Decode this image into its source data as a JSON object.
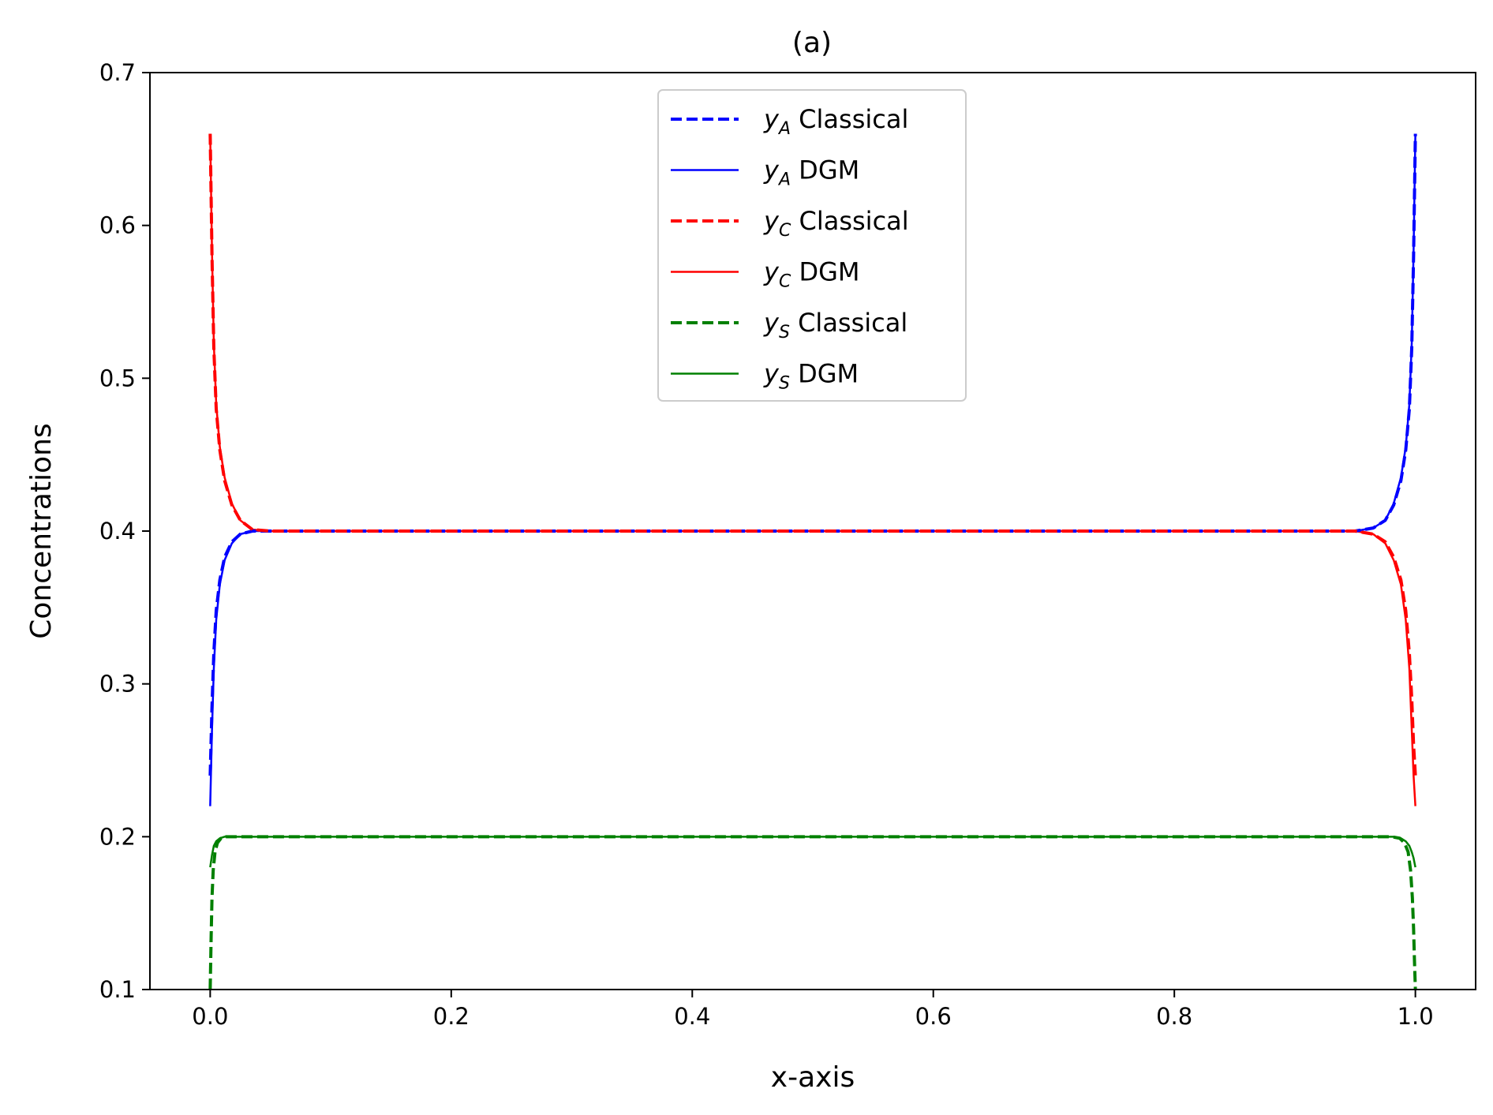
{
  "chart_data": {
    "type": "line",
    "title": "(a)",
    "xlabel": "x-axis",
    "ylabel": "Concentrations",
    "xlim": [
      -0.05,
      1.05
    ],
    "ylim": [
      0.1,
      0.7
    ],
    "xticks": [
      "0.0",
      "0.2",
      "0.4",
      "0.6",
      "0.8",
      "1.0"
    ],
    "yticks": [
      "0.1",
      "0.2",
      "0.3",
      "0.4",
      "0.5",
      "0.6",
      "0.7"
    ],
    "grid": false,
    "legend_position": "upper center",
    "series": [
      {
        "name": "y_A Classical",
        "var": "y",
        "sub": "A",
        "label": "Classical",
        "color": "#0000ff",
        "style": "dashed",
        "x": [
          0.0,
          0.0015,
          0.003,
          0.005,
          0.008,
          0.012,
          0.018,
          0.025,
          0.035,
          0.05,
          0.2,
          0.4,
          0.6,
          0.8,
          0.95,
          0.965,
          0.975,
          0.982,
          0.988,
          0.992,
          0.995,
          0.997,
          0.9985,
          1.0
        ],
        "y": [
          0.24,
          0.285,
          0.32,
          0.348,
          0.368,
          0.383,
          0.393,
          0.398,
          0.4,
          0.4,
          0.4,
          0.4,
          0.4,
          0.4,
          0.4,
          0.402,
          0.407,
          0.417,
          0.433,
          0.453,
          0.48,
          0.52,
          0.58,
          0.66
        ]
      },
      {
        "name": "y_A DGM",
        "var": "y",
        "sub": "A",
        "label": "DGM",
        "color": "#0000ff",
        "style": "solid",
        "x": [
          0.0,
          0.0015,
          0.003,
          0.005,
          0.008,
          0.012,
          0.018,
          0.025,
          0.035,
          0.05,
          0.2,
          0.4,
          0.6,
          0.8,
          0.95,
          0.965,
          0.975,
          0.982,
          0.988,
          0.992,
          0.995,
          0.997,
          0.9985,
          1.0
        ],
        "y": [
          0.22,
          0.27,
          0.31,
          0.342,
          0.365,
          0.381,
          0.392,
          0.398,
          0.4,
          0.4,
          0.4,
          0.4,
          0.4,
          0.4,
          0.4,
          0.402,
          0.407,
          0.418,
          0.435,
          0.455,
          0.483,
          0.523,
          0.583,
          0.66
        ]
      },
      {
        "name": "y_C Classical",
        "var": "y",
        "sub": "C",
        "label": "Classical",
        "color": "#ff0000",
        "style": "dashed",
        "x": [
          0.0,
          0.0015,
          0.003,
          0.005,
          0.008,
          0.012,
          0.018,
          0.025,
          0.035,
          0.05,
          0.2,
          0.4,
          0.6,
          0.8,
          0.95,
          0.965,
          0.975,
          0.982,
          0.988,
          0.992,
          0.995,
          0.997,
          0.9985,
          1.0
        ],
        "y": [
          0.66,
          0.58,
          0.52,
          0.48,
          0.453,
          0.433,
          0.417,
          0.407,
          0.401,
          0.4,
          0.4,
          0.4,
          0.4,
          0.4,
          0.4,
          0.398,
          0.393,
          0.383,
          0.368,
          0.348,
          0.32,
          0.29,
          0.26,
          0.24
        ]
      },
      {
        "name": "y_C DGM",
        "var": "y",
        "sub": "C",
        "label": "DGM",
        "color": "#ff0000",
        "style": "solid",
        "x": [
          0.0,
          0.0015,
          0.003,
          0.005,
          0.008,
          0.012,
          0.018,
          0.025,
          0.035,
          0.05,
          0.2,
          0.4,
          0.6,
          0.8,
          0.95,
          0.965,
          0.975,
          0.982,
          0.988,
          0.992,
          0.995,
          0.997,
          0.9985,
          1.0
        ],
        "y": [
          0.66,
          0.583,
          0.523,
          0.483,
          0.455,
          0.435,
          0.418,
          0.407,
          0.401,
          0.4,
          0.4,
          0.4,
          0.4,
          0.4,
          0.4,
          0.398,
          0.392,
          0.381,
          0.365,
          0.342,
          0.31,
          0.27,
          0.24,
          0.22
        ]
      },
      {
        "name": "y_S Classical",
        "var": "y",
        "sub": "S",
        "label": "Classical",
        "color": "#008000",
        "style": "dashed",
        "x": [
          0.0,
          0.0008,
          0.0015,
          0.0025,
          0.004,
          0.006,
          0.009,
          0.013,
          0.02,
          0.2,
          0.4,
          0.6,
          0.8,
          0.98,
          0.987,
          0.991,
          0.994,
          0.996,
          0.9975,
          0.9985,
          0.9992,
          1.0
        ],
        "y": [
          0.1,
          0.135,
          0.16,
          0.178,
          0.19,
          0.196,
          0.199,
          0.2,
          0.2,
          0.2,
          0.2,
          0.2,
          0.2,
          0.2,
          0.199,
          0.196,
          0.19,
          0.178,
          0.16,
          0.14,
          0.12,
          0.1
        ]
      },
      {
        "name": "y_S DGM",
        "var": "y",
        "sub": "S",
        "label": "DGM",
        "color": "#008000",
        "style": "solid",
        "x": [
          0.0,
          0.0015,
          0.003,
          0.005,
          0.008,
          0.012,
          0.018,
          0.2,
          0.4,
          0.6,
          0.8,
          0.982,
          0.988,
          0.992,
          0.995,
          0.997,
          0.9985,
          1.0
        ],
        "y": [
          0.18,
          0.188,
          0.194,
          0.197,
          0.199,
          0.2,
          0.2,
          0.2,
          0.2,
          0.2,
          0.2,
          0.2,
          0.199,
          0.197,
          0.194,
          0.19,
          0.186,
          0.18
        ]
      }
    ]
  }
}
